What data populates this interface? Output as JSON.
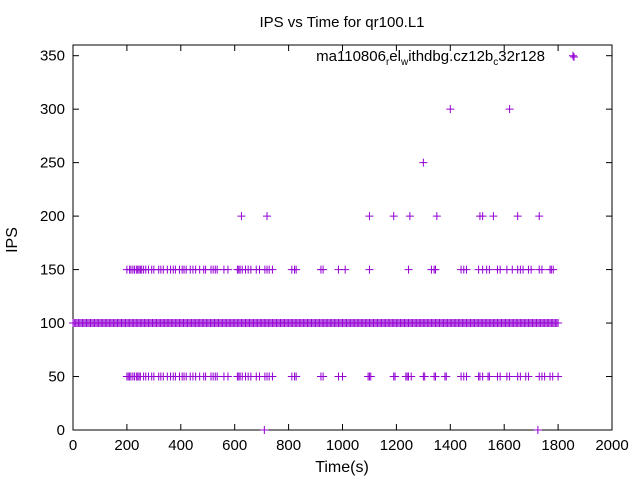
{
  "chart_data": {
    "type": "scatter",
    "title": "IPS vs Time for qr100.L1",
    "xlabel": "Time(s)",
    "ylabel": "IPS",
    "xlim": [
      0,
      2000
    ],
    "ylim": [
      0,
      360
    ],
    "xticks": [
      0,
      200,
      400,
      600,
      800,
      1000,
      1200,
      1400,
      1600,
      1800,
      2000
    ],
    "yticks": [
      0,
      50,
      100,
      150,
      200,
      250,
      300,
      350
    ],
    "grid": false,
    "legend_position": "top-right",
    "marker": "plus",
    "color": "#9400d3",
    "series": [
      {
        "name": "ma110806_rel_withdbg.cz12b_c32r128",
        "name_display": {
          "parts": [
            {
              "text": "ma110806",
              "sub": false
            },
            {
              "text": "r",
              "sub": true
            },
            {
              "text": "el",
              "sub": false
            },
            {
              "text": "w",
              "sub": true
            },
            {
              "text": "ithdbg.cz12b",
              "sub": false
            },
            {
              "text": "c",
              "sub": true
            },
            {
              "text": "32r128",
              "sub": false
            }
          ]
        },
        "baseline_100": {
          "y": 100,
          "x_start": 0,
          "x_end": 1800,
          "interval": 5
        },
        "points_150": [
          200,
          210,
          215,
          222,
          228,
          235,
          240,
          245,
          250,
          255,
          262,
          270,
          280,
          292,
          300,
          318,
          326,
          335,
          350,
          362,
          372,
          380,
          395,
          405,
          412,
          420,
          435,
          445,
          455,
          470,
          485,
          492,
          512,
          520,
          528,
          535,
          560,
          575,
          610,
          615,
          620,
          628,
          640,
          650,
          660,
          680,
          692,
          712,
          720,
          728,
          740,
          812,
          822,
          828,
          920,
          928,
          985,
          1010,
          1100,
          1245,
          1330,
          1340,
          1345,
          1440,
          1450,
          1460,
          1505,
          1520,
          1535,
          1545,
          1575,
          1585,
          1610,
          1630,
          1650,
          1660,
          1670,
          1690,
          1700,
          1730,
          1740,
          1770,
          1775,
          1782
        ],
        "points_50": [
          200,
          205,
          210,
          215,
          222,
          228,
          235,
          240,
          245,
          250,
          262,
          270,
          280,
          292,
          300,
          318,
          326,
          335,
          350,
          362,
          372,
          380,
          395,
          405,
          412,
          420,
          435,
          445,
          455,
          470,
          485,
          492,
          512,
          520,
          528,
          535,
          560,
          575,
          610,
          615,
          620,
          628,
          640,
          650,
          660,
          680,
          692,
          712,
          720,
          728,
          740,
          812,
          822,
          828,
          920,
          928,
          985,
          1000,
          1095,
          1100,
          1105,
          1190,
          1195,
          1235,
          1240,
          1245,
          1255,
          1300,
          1305,
          1340,
          1345,
          1380,
          1385,
          1440,
          1450,
          1460,
          1505,
          1510,
          1520,
          1540,
          1545,
          1575,
          1585,
          1610,
          1620,
          1650,
          1660,
          1680,
          1690,
          1730,
          1740,
          1750,
          1770,
          1780,
          1800
        ],
        "points_200": [
          625,
          720,
          1100,
          1190,
          1250,
          1350,
          1510,
          1520,
          1560,
          1650,
          1730
        ],
        "points_250": [
          1300
        ],
        "points_300": [
          1400,
          1620
        ],
        "points_350": [
          1855
        ],
        "points_0": [
          710,
          1725
        ]
      }
    ]
  }
}
